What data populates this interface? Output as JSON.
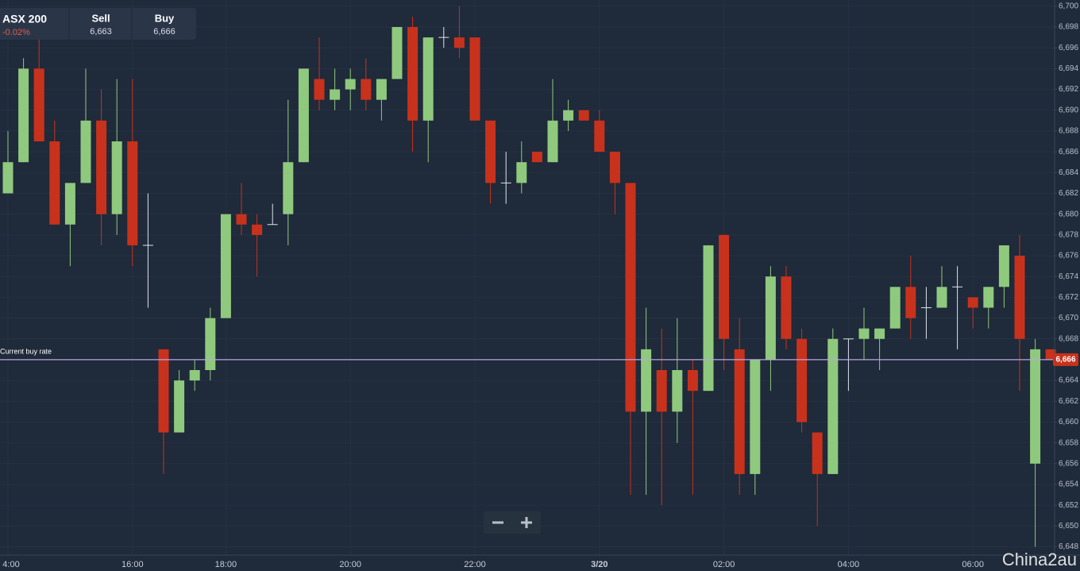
{
  "chart_data": {
    "type": "candlestick",
    "open": [
      6682,
      6685,
      6694,
      6687,
      6679,
      6683,
      6689,
      6680,
      6687,
      6677,
      6667,
      6659,
      6664,
      6665,
      6670,
      6680,
      6679,
      6679,
      6680,
      6685,
      6693,
      6691,
      6692,
      6693,
      6691,
      6693,
      6698,
      6689,
      6697,
      6697,
      6697,
      6689,
      6683,
      6683,
      6686,
      6685,
      6689,
      6690,
      6689,
      6686,
      6683,
      6661,
      6665,
      6661,
      6665,
      6663,
      6678,
      6667,
      6655,
      6666,
      6674,
      6668,
      6659,
      6655,
      6668,
      6668,
      6668,
      6669,
      6673,
      6671,
      6671,
      6673,
      6672,
      6671,
      6673,
      6676,
      6656,
      6667
    ],
    "high": [
      6688,
      6695,
      6697,
      6689,
      6683,
      6694,
      6692,
      6693,
      6693,
      6682,
      6667,
      6665,
      6666,
      6671,
      6680,
      6683,
      6680,
      6681,
      6691,
      6694,
      6697,
      6694,
      6694,
      6695,
      6693,
      6698,
      6699,
      6697,
      6698,
      6700,
      6697,
      6689,
      6686,
      6687,
      6686,
      6693,
      6691,
      6690,
      6690,
      6686,
      6683,
      6671,
      6669,
      6670,
      6666,
      6677,
      6678,
      6670,
      6666,
      6675,
      6675,
      6669,
      6659,
      6669,
      6668,
      6671,
      6669,
      6673,
      6676,
      6673,
      6675,
      6675,
      6672,
      6673,
      6677,
      6678,
      6668,
      6667
    ],
    "low": [
      6682,
      6685,
      6687,
      6679,
      6675,
      6683,
      6677,
      6678,
      6675,
      6671,
      6655,
      6659,
      6663,
      6664,
      6670,
      6678,
      6674,
      6679,
      6677,
      6685,
      6690,
      6690,
      6690,
      6690,
      6689,
      6693,
      6686,
      6685,
      6696,
      6695,
      6689,
      6681,
      6681,
      6682,
      6685,
      6685,
      6688,
      6689,
      6686,
      6680,
      6653,
      6653,
      6652,
      6658,
      6653,
      6663,
      6665,
      6653,
      6653,
      6663,
      6667,
      6659,
      6650,
      6655,
      6663,
      6666,
      6665,
      6669,
      6668,
      6668,
      6671,
      6667,
      6669,
      6669,
      6671,
      6663,
      6648,
      6666
    ],
    "close": [
      6685,
      6694,
      6687,
      6679,
      6683,
      6689,
      6680,
      6687,
      6677,
      6677,
      6659,
      6664,
      6665,
      6670,
      6680,
      6679,
      6678,
      6679,
      6685,
      6694,
      6691,
      6692,
      6693,
      6691,
      6693,
      6698,
      6689,
      6697,
      6697,
      6696,
      6689,
      6683,
      6683,
      6685,
      6685,
      6689,
      6690,
      6689,
      6686,
      6683,
      6661,
      6667,
      6661,
      6665,
      6663,
      6677,
      6668,
      6655,
      6666,
      6674,
      6668,
      6660,
      6655,
      6668,
      6668,
      6669,
      6669,
      6673,
      6670,
      6671,
      6673,
      6673,
      6671,
      6673,
      6677,
      6668,
      6667,
      6666
    ],
    "up_color": "#8fc97d",
    "down_color": "#c8321c",
    "ylim": [
      6647.2,
      6700.6
    ],
    "yticks": [
      {
        "value": 6648,
        "label": "6,648"
      },
      {
        "value": 6650,
        "label": "6,650"
      },
      {
        "value": 6652,
        "label": "6,652"
      },
      {
        "value": 6654,
        "label": "6,654"
      },
      {
        "value": 6656,
        "label": "6,656"
      },
      {
        "value": 6658,
        "label": "6,658"
      },
      {
        "value": 6660,
        "label": "6,660"
      },
      {
        "value": 6662,
        "label": "6,662"
      },
      {
        "value": 6664,
        "label": "6,664"
      },
      {
        "value": 6666,
        "label": "6,666"
      },
      {
        "value": 6668,
        "label": "6,668"
      },
      {
        "value": 6670,
        "label": "6,670"
      },
      {
        "value": 6672,
        "label": "6,672"
      },
      {
        "value": 6674,
        "label": "6,674"
      },
      {
        "value": 6676,
        "label": "6,676"
      },
      {
        "value": 6678,
        "label": "6,678"
      },
      {
        "value": 6680,
        "label": "6,680"
      },
      {
        "value": 6682,
        "label": "6,682"
      },
      {
        "value": 6684,
        "label": "6,684"
      },
      {
        "value": 6686,
        "label": "6,686"
      },
      {
        "value": 6688,
        "label": "6,688"
      },
      {
        "value": 6690,
        "label": "6,690"
      },
      {
        "value": 6692,
        "label": "6,692"
      },
      {
        "value": 6694,
        "label": "6,694"
      },
      {
        "value": 6696,
        "label": "6,696"
      },
      {
        "value": 6698,
        "label": "6,698"
      },
      {
        "value": 6700,
        "label": "6,700"
      }
    ],
    "xticks": [
      {
        "value": 0,
        "label": "4:00"
      },
      {
        "value": 8,
        "label": "16:00"
      },
      {
        "value": 14,
        "label": "18:00"
      },
      {
        "value": 22,
        "label": "20:00"
      },
      {
        "value": 30,
        "label": "22:00"
      },
      {
        "value": 38,
        "label": "3/20"
      },
      {
        "value": 46,
        "label": "02:00"
      },
      {
        "value": 54,
        "label": "04:00"
      },
      {
        "value": 62,
        "label": "06:00"
      }
    ],
    "grid": true,
    "current_rate": {
      "label": "Current buy rate",
      "value": 6666,
      "value_label": "6,666",
      "color": "#b9a7e0"
    }
  },
  "widget": {
    "instrument": "ASX 200",
    "change": "-0.02%",
    "sell_label": "Sell",
    "sell": "6,663",
    "buy_label": "Buy",
    "buy": "6,666"
  },
  "watermark": "China2au"
}
